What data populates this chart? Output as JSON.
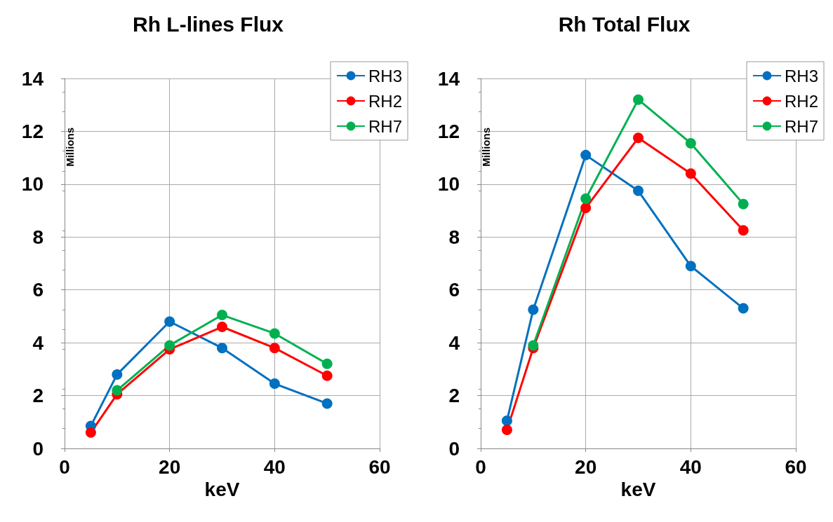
{
  "chart_data": [
    {
      "type": "line",
      "title": "Rh L-lines Flux",
      "xlabel": "keV",
      "ylabel": "Millions",
      "x": [
        5,
        10,
        20,
        30,
        40,
        50
      ],
      "xlim": [
        0,
        60
      ],
      "xticks": [
        0,
        20,
        40,
        60
      ],
      "ylim": [
        0,
        14
      ],
      "yticks": [
        0,
        2,
        4,
        6,
        8,
        10,
        12,
        14
      ],
      "grid": true,
      "legend": "top right",
      "marker": "circle",
      "line_style": "solid",
      "series": [
        {
          "name": "RH3",
          "color": "#0070c0",
          "values": [
            0.85,
            2.8,
            4.8,
            3.8,
            2.45,
            1.7
          ]
        },
        {
          "name": "RH2",
          "color": "#ff0000",
          "values": [
            0.6,
            2.05,
            3.75,
            4.6,
            3.8,
            2.75
          ]
        },
        {
          "name": "RH7",
          "color": "#00b050",
          "values": [
            null,
            2.2,
            3.9,
            5.05,
            4.35,
            3.2
          ]
        }
      ]
    },
    {
      "type": "line",
      "title": "Rh Total Flux",
      "xlabel": "keV",
      "ylabel": "Millions",
      "x": [
        5,
        10,
        20,
        30,
        40,
        50
      ],
      "xlim": [
        0,
        60
      ],
      "xticks": [
        0,
        20,
        40,
        60
      ],
      "ylim": [
        0,
        14
      ],
      "yticks": [
        0,
        2,
        4,
        6,
        8,
        10,
        12,
        14
      ],
      "grid": true,
      "legend": "top right",
      "marker": "circle",
      "line_style": "solid",
      "series": [
        {
          "name": "RH3",
          "color": "#0070c0",
          "values": [
            1.05,
            5.25,
            11.1,
            9.75,
            6.9,
            5.3
          ]
        },
        {
          "name": "RH2",
          "color": "#ff0000",
          "values": [
            0.7,
            3.8,
            9.1,
            11.75,
            10.4,
            8.25
          ]
        },
        {
          "name": "RH7",
          "color": "#00b050",
          "values": [
            null,
            3.9,
            9.45,
            13.2,
            11.55,
            9.25
          ]
        }
      ]
    }
  ]
}
